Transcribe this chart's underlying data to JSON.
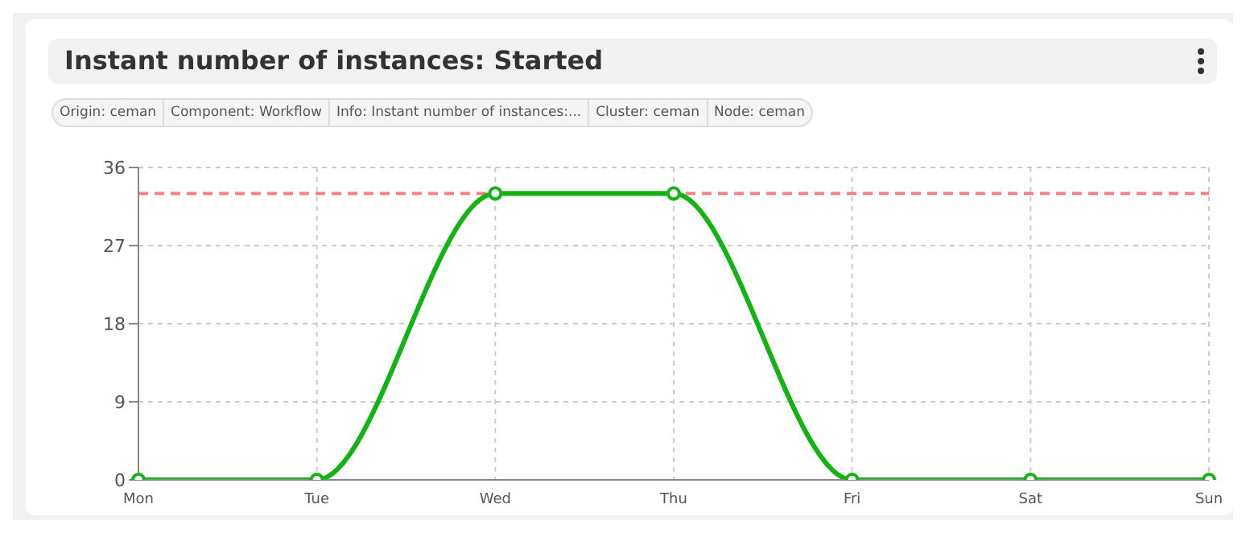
{
  "chart_data": {
    "type": "line",
    "title": "Instant number of instances: Started",
    "annotations": [
      "Origin: ceman",
      "Component: Workflow",
      "Info: Instant number of instances:...",
      "Cluster: ceman",
      "Node: ceman"
    ],
    "categories": [
      "Mon",
      "Tue",
      "Wed",
      "Thu",
      "Fri",
      "Sat",
      "Sun"
    ],
    "series": [
      {
        "color": "#12b312",
        "values": [
          0,
          0,
          33,
          33,
          0,
          0,
          0
        ]
      }
    ],
    "ylim": [
      0,
      36
    ],
    "yticks": [
      0,
      9,
      18,
      27,
      36
    ],
    "grid": true,
    "legend": false,
    "marker": "circle",
    "line_style": "solid",
    "ref_lines": [
      {
        "axis": "y",
        "value": 33,
        "color": "#ff8080",
        "line_style": "dashed"
      }
    ]
  }
}
